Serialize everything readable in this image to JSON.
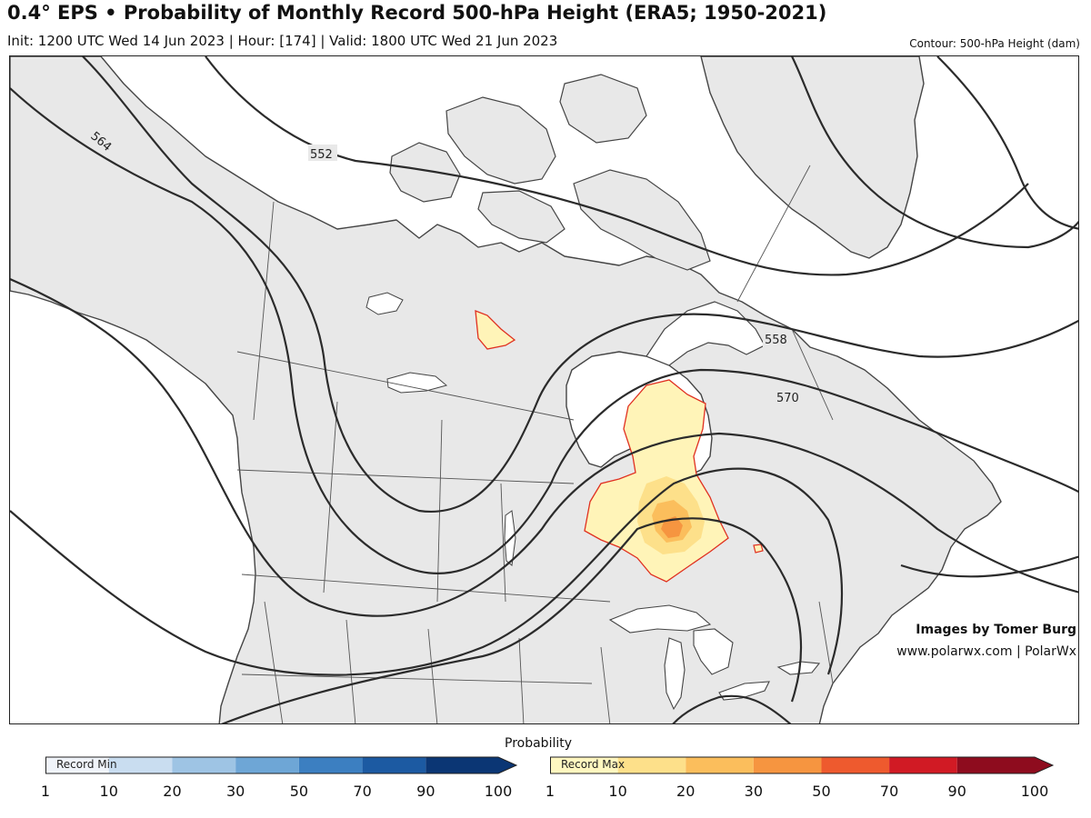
{
  "header": {
    "title": "0.4° EPS • Probability of Monthly Record 500-hPa Height (ERA5; 1950-2021)",
    "subtitle": "Init: 1200 UTC Wed 14 Jun 2023 | Hour: [174] | Valid: 1800 UTC Wed 21 Jun 2023",
    "contour_note": "Contour: 500-hPa Height (dam)"
  },
  "map": {
    "contour_labels": [
      "552",
      "558",
      "564",
      "570"
    ],
    "colors": {
      "land": "#e8e8e8",
      "water": "#ffffff",
      "contour": "#2b2b2b",
      "coast": "#444444",
      "record_max_outline": "#e03020"
    }
  },
  "credits": {
    "line1": "Images by Tomer Burg",
    "line2": "www.polarwx.com | PolarWx"
  },
  "legend": {
    "title": "Probability",
    "record_min": {
      "label": "Record Min",
      "ticks": [
        "1",
        "10",
        "20",
        "30",
        "50",
        "70",
        "90",
        "100"
      ],
      "colors": [
        "#f0f4fa",
        "#c9ddf0",
        "#9ec4e4",
        "#6ea6d6",
        "#3c7fc1",
        "#1c5aa2",
        "#0b3674"
      ]
    },
    "record_max": {
      "label": "Record Max",
      "ticks": [
        "1",
        "10",
        "20",
        "30",
        "50",
        "70",
        "90",
        "100"
      ],
      "colors": [
        "#fff7c0",
        "#fde08a",
        "#fbbe5c",
        "#f69540",
        "#ee5a2e",
        "#d11a24",
        "#8e0c1e"
      ]
    }
  }
}
